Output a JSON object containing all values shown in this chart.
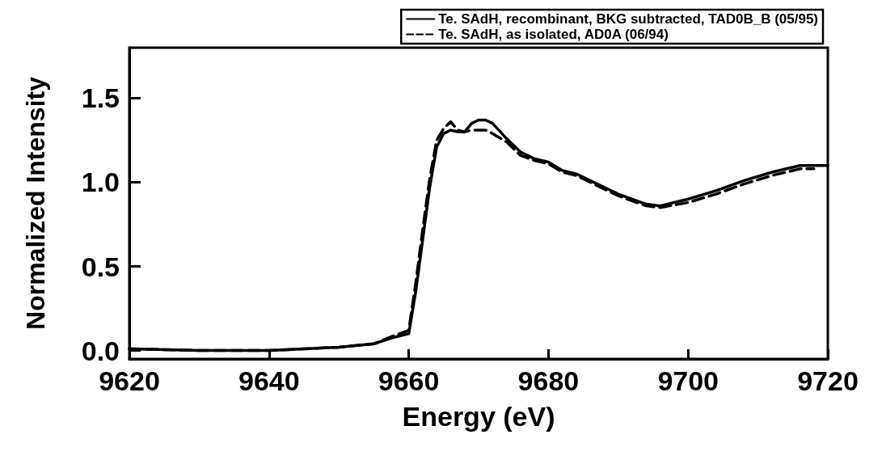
{
  "chart_data": {
    "type": "line",
    "xlabel": "Energy (eV)",
    "ylabel": "Normalized Intensity",
    "xlim": [
      9620,
      9720
    ],
    "ylim": [
      -0.05,
      1.8
    ],
    "xticks": [
      9620,
      9640,
      9660,
      9680,
      9700,
      9720
    ],
    "yticks": [
      {
        "value": 0,
        "label": "0.0"
      },
      0.5,
      {
        "value": 1,
        "label": "1.0"
      },
      1.5
    ],
    "grid": false,
    "legend": "top right",
    "marker": "none",
    "series": [
      {
        "name": "Te. SAdH, recombinant, BKG subtracted, TAD0B_B (05/95)",
        "color": "#000000",
        "line_style": "solid",
        "x": [
          9620,
          9630,
          9640,
          9645,
          9650,
          9655,
          9658,
          9660,
          9661,
          9662,
          9663,
          9664,
          9665,
          9666,
          9667,
          9668,
          9669,
          9670,
          9671,
          9672,
          9674,
          9676,
          9678,
          9680,
          9682,
          9684,
          9688,
          9690,
          9694,
          9696,
          9700,
          9704,
          9708,
          9712,
          9716,
          9720
        ],
        "values": [
          0.01,
          0.0,
          0.0,
          0.01,
          0.02,
          0.04,
          0.08,
          0.1,
          0.35,
          0.66,
          0.97,
          1.21,
          1.29,
          1.31,
          1.3,
          1.3,
          1.35,
          1.37,
          1.37,
          1.35,
          1.26,
          1.18,
          1.14,
          1.12,
          1.07,
          1.05,
          0.97,
          0.93,
          0.87,
          0.86,
          0.9,
          0.95,
          1.01,
          1.06,
          1.1,
          1.1
        ]
      },
      {
        "name": "Te. SAdH, as isolated, AD0A (06/94)",
        "color": "#000000",
        "line_style": "dashed",
        "x": [
          9620,
          9630,
          9640,
          9645,
          9650,
          9655,
          9658,
          9660,
          9661,
          9662,
          9663,
          9664,
          9665,
          9666,
          9667,
          9668,
          9669,
          9670,
          9671,
          9672,
          9674,
          9676,
          9678,
          9680,
          9682,
          9684,
          9688,
          9690,
          9694,
          9696,
          9700,
          9704,
          9708,
          9712,
          9716,
          9718
        ],
        "values": [
          0.01,
          0.0,
          0.0,
          0.01,
          0.02,
          0.04,
          0.09,
          0.12,
          0.4,
          0.72,
          1.02,
          1.25,
          1.32,
          1.36,
          1.31,
          1.3,
          1.31,
          1.31,
          1.31,
          1.29,
          1.24,
          1.16,
          1.13,
          1.11,
          1.06,
          1.04,
          0.96,
          0.92,
          0.86,
          0.85,
          0.88,
          0.93,
          0.99,
          1.04,
          1.08,
          1.08
        ]
      }
    ]
  }
}
